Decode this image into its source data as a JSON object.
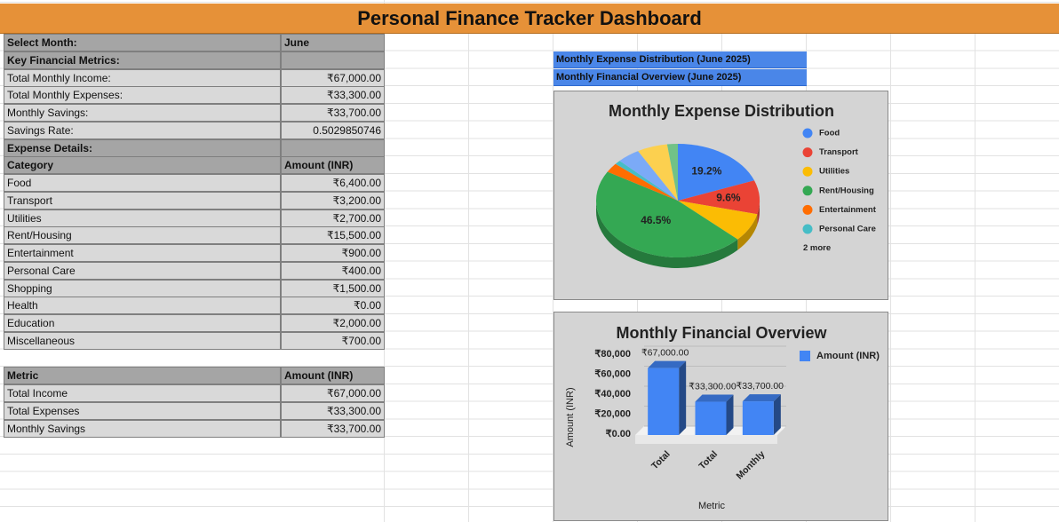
{
  "header": {
    "title": "Personal Finance Tracker Dashboard"
  },
  "summary": {
    "label": "Select Month:",
    "value": "June"
  },
  "metrics": {
    "title": "Key Financial Metrics:",
    "rows": [
      [
        "Total Monthly Income:",
        "₹67,000.00"
      ],
      [
        "Total Monthly Expenses:",
        "₹33,300.00"
      ],
      [
        "Monthly Savings:",
        "₹33,700.00"
      ],
      [
        "Savings Rate:",
        "0.5029850746"
      ]
    ]
  },
  "expenses": {
    "title": "Expense Details:",
    "columns": [
      "Category",
      "Amount (INR)"
    ],
    "rows": [
      [
        "Food",
        "₹6,400.00"
      ],
      [
        "Transport",
        "₹3,200.00"
      ],
      [
        "Utilities",
        "₹2,700.00"
      ],
      [
        "Rent/Housing",
        "₹15,500.00"
      ],
      [
        "Entertainment",
        "₹900.00"
      ],
      [
        "Personal Care",
        "₹400.00"
      ],
      [
        "Shopping",
        "₹1,500.00"
      ],
      [
        "Health",
        "₹0.00"
      ],
      [
        "Education",
        "₹2,000.00"
      ],
      [
        "Miscellaneous",
        "₹700.00"
      ]
    ]
  },
  "overview": {
    "columns": [
      "Metric",
      "Amount (INR)"
    ],
    "rows": [
      [
        "Total Income",
        "₹67,000.00"
      ],
      [
        "Total Expenses",
        "₹33,300.00"
      ],
      [
        "Monthly Savings",
        "₹33,700.00"
      ]
    ]
  },
  "chart_links": [
    "Monthly Expense Distribution (June 2025)",
    "Monthly Financial Overview (June 2025)"
  ],
  "chart_data": [
    {
      "type": "pie",
      "title": "Monthly Expense Distribution",
      "categories": [
        "Food",
        "Transport",
        "Utilities",
        "Rent/Housing",
        "Entertainment",
        "Personal Care",
        "Shopping",
        "Education",
        "Miscellaneous"
      ],
      "values": [
        19.2,
        9.6,
        8.1,
        46.5,
        2.7,
        1.2,
        4.5,
        6.0,
        2.1
      ],
      "value_labels": [
        "19.2%",
        "9.6%",
        null,
        "46.5%",
        null,
        null,
        null,
        null,
        null
      ],
      "colors": [
        "#4285f4",
        "#ea4335",
        "#fbbc04",
        "#34a853",
        "#ff6d01",
        "#46bdc6",
        "#7baaf7",
        "#fcd04f",
        "#71c287"
      ],
      "legend": "right",
      "legend_more": "2 more"
    },
    {
      "type": "bar",
      "title": "Monthly Financial Overview",
      "categories": [
        "Total",
        "Total",
        "Monthly"
      ],
      "series": [
        {
          "name": "Amount (INR)",
          "color": "#4285f4",
          "values": [
            67000,
            33300,
            33700
          ],
          "value_labels": [
            "₹67,000.00",
            "₹33,300.00",
            "₹33,700.00"
          ]
        }
      ],
      "x_label": "Metric",
      "y_label": "Amount (INR)",
      "ylim": [
        0,
        80000
      ],
      "yticks": [
        {
          "value": 0,
          "label": "₹0.00"
        },
        {
          "value": 20000,
          "label": "₹20,000"
        },
        {
          "value": 40000,
          "label": "₹40,000"
        },
        {
          "value": 60000,
          "label": "₹60,000"
        },
        {
          "value": 80000,
          "label": "₹80,000"
        }
      ],
      "grid": true,
      "legend": "right"
    }
  ]
}
